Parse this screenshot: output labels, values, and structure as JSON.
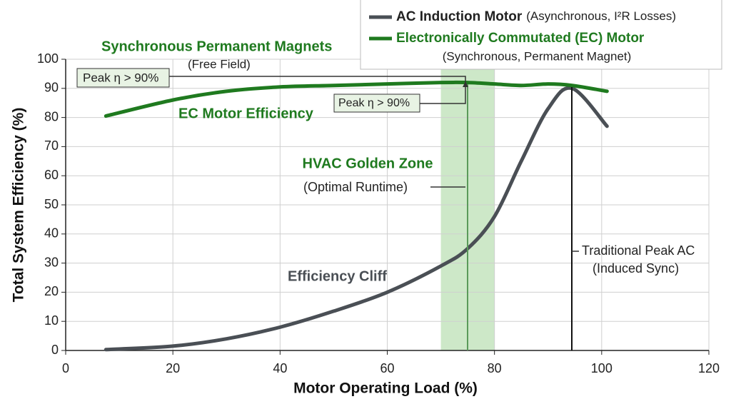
{
  "chart_data": {
    "type": "line",
    "x_label": "Motor Operating Load (%)",
    "y_label": "Total System Efficiency (%)",
    "x": [
      7.5,
      20,
      30,
      40,
      50,
      60,
      70,
      75,
      80,
      85,
      90,
      94.5,
      101
    ],
    "series": [
      {
        "name": "AC Induction Motor",
        "description": "(Asynchronous, I²R Losses)",
        "color": "#4a4f55",
        "values": [
          0.3,
          1.5,
          4,
          8,
          13.5,
          20,
          29,
          35,
          46,
          65,
          83,
          90,
          77
        ]
      },
      {
        "name": "Electronically Commutated (EC) Motor",
        "description": "(Synchronous, Permanent Magnet)",
        "color": "#1f7a1f",
        "values": [
          80.5,
          86,
          89,
          90.5,
          91,
          91.5,
          92,
          92,
          91.5,
          91,
          91.5,
          91,
          89
        ]
      }
    ],
    "highlight_x": [
      70,
      80
    ],
    "highlight_color": "#cde8c8",
    "xlim": [
      0,
      120
    ],
    "xticks": [
      0,
      20,
      40,
      60,
      80,
      100,
      120
    ],
    "ylim": [
      0,
      100
    ],
    "yticks": [
      0,
      10,
      20,
      30,
      40,
      50,
      60,
      70,
      80,
      90,
      100
    ],
    "grid": true,
    "annotations": [
      "Synchronous Permanent Magnets",
      "(Free Field)",
      "Peak η > 90%",
      "EC Motor Efficiency",
      "Peak η > 90%",
      "HVAC Golden Zone",
      "(Optimal Runtime)",
      "Efficiency Cliff",
      "Traditional Peak AC",
      "(Induced Sync)"
    ]
  }
}
